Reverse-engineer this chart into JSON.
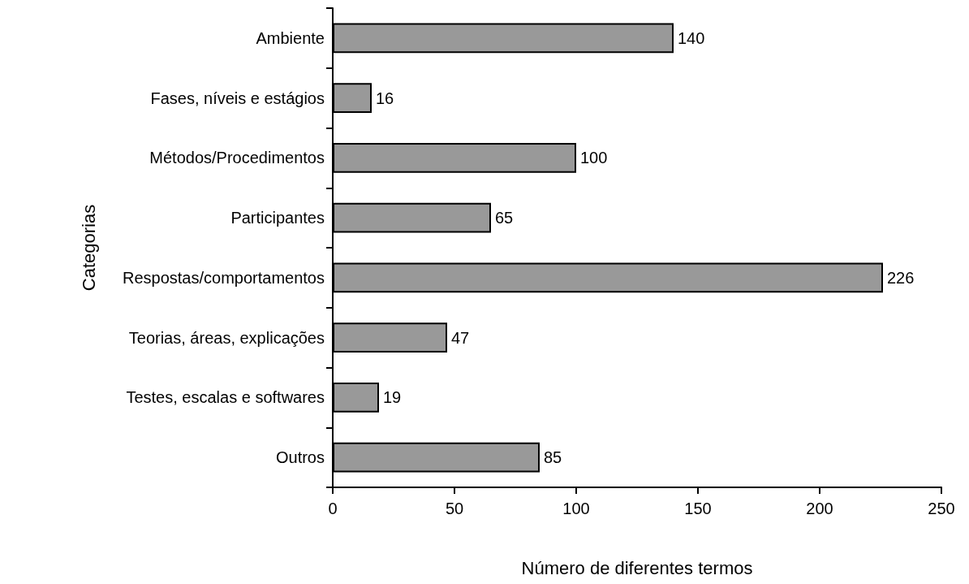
{
  "chart_data": {
    "type": "bar",
    "orientation": "horizontal",
    "xlabel": "Número de diferentes termos",
    "ylabel": "Categorias",
    "categories": [
      "Ambiente",
      "Fases, níveis e estágios",
      "Métodos/Procedimentos",
      "Participantes",
      "Respostas/comportamentos",
      "Teorias, áreas, explicações",
      "Testes, escalas e softwares",
      "Outros"
    ],
    "values": [
      140,
      16,
      100,
      65,
      226,
      47,
      19,
      85
    ],
    "color": "#999999",
    "xlim": [
      0,
      250
    ],
    "xticks": [
      0,
      50,
      100,
      150,
      200,
      250
    ],
    "grid": false,
    "data_labels": true
  }
}
